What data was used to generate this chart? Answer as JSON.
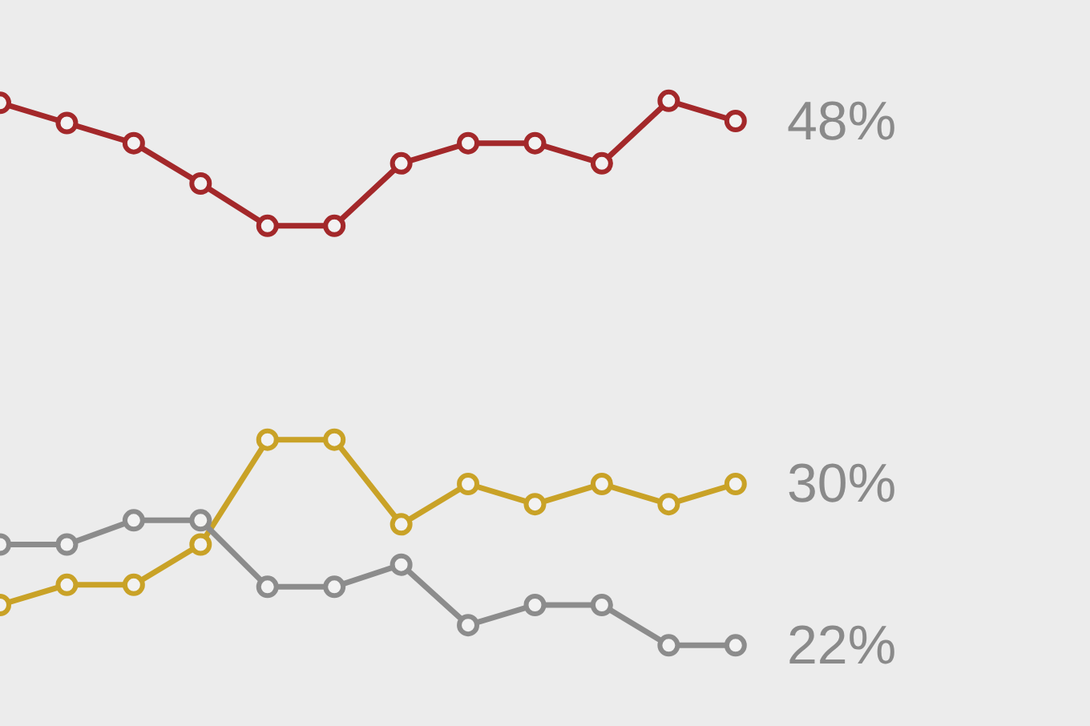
{
  "chart_data": {
    "type": "line",
    "categories": [
      null,
      null,
      null,
      null,
      null,
      null,
      null,
      null,
      null,
      null,
      null,
      null
    ],
    "ylim": [
      18,
      54
    ],
    "grid": false,
    "marker": "circle",
    "line_style": "solid",
    "series": [
      {
        "color": "#a3282a",
        "values": [
          48.9,
          47.9,
          46.9,
          44.9,
          42.8,
          42.8,
          45.9,
          46.9,
          46.9,
          45.9,
          49,
          48
        ],
        "value_labels": [
          null,
          null,
          null,
          null,
          null,
          null,
          null,
          null,
          null,
          null,
          null,
          "48%"
        ]
      },
      {
        "color": "#c9a227",
        "values": [
          24,
          25,
          25,
          27,
          32.2,
          32.2,
          28,
          30,
          29,
          30,
          29,
          30
        ],
        "value_labels": [
          null,
          null,
          null,
          null,
          null,
          null,
          null,
          null,
          null,
          null,
          null,
          "30%"
        ]
      },
      {
        "color": "#8c8c8c",
        "values": [
          27,
          27,
          28.2,
          28.2,
          24.9,
          24.9,
          26,
          23,
          24,
          24,
          22,
          22
        ],
        "value_labels": [
          null,
          null,
          null,
          null,
          null,
          null,
          null,
          null,
          null,
          null,
          null,
          "22%"
        ]
      }
    ]
  }
}
